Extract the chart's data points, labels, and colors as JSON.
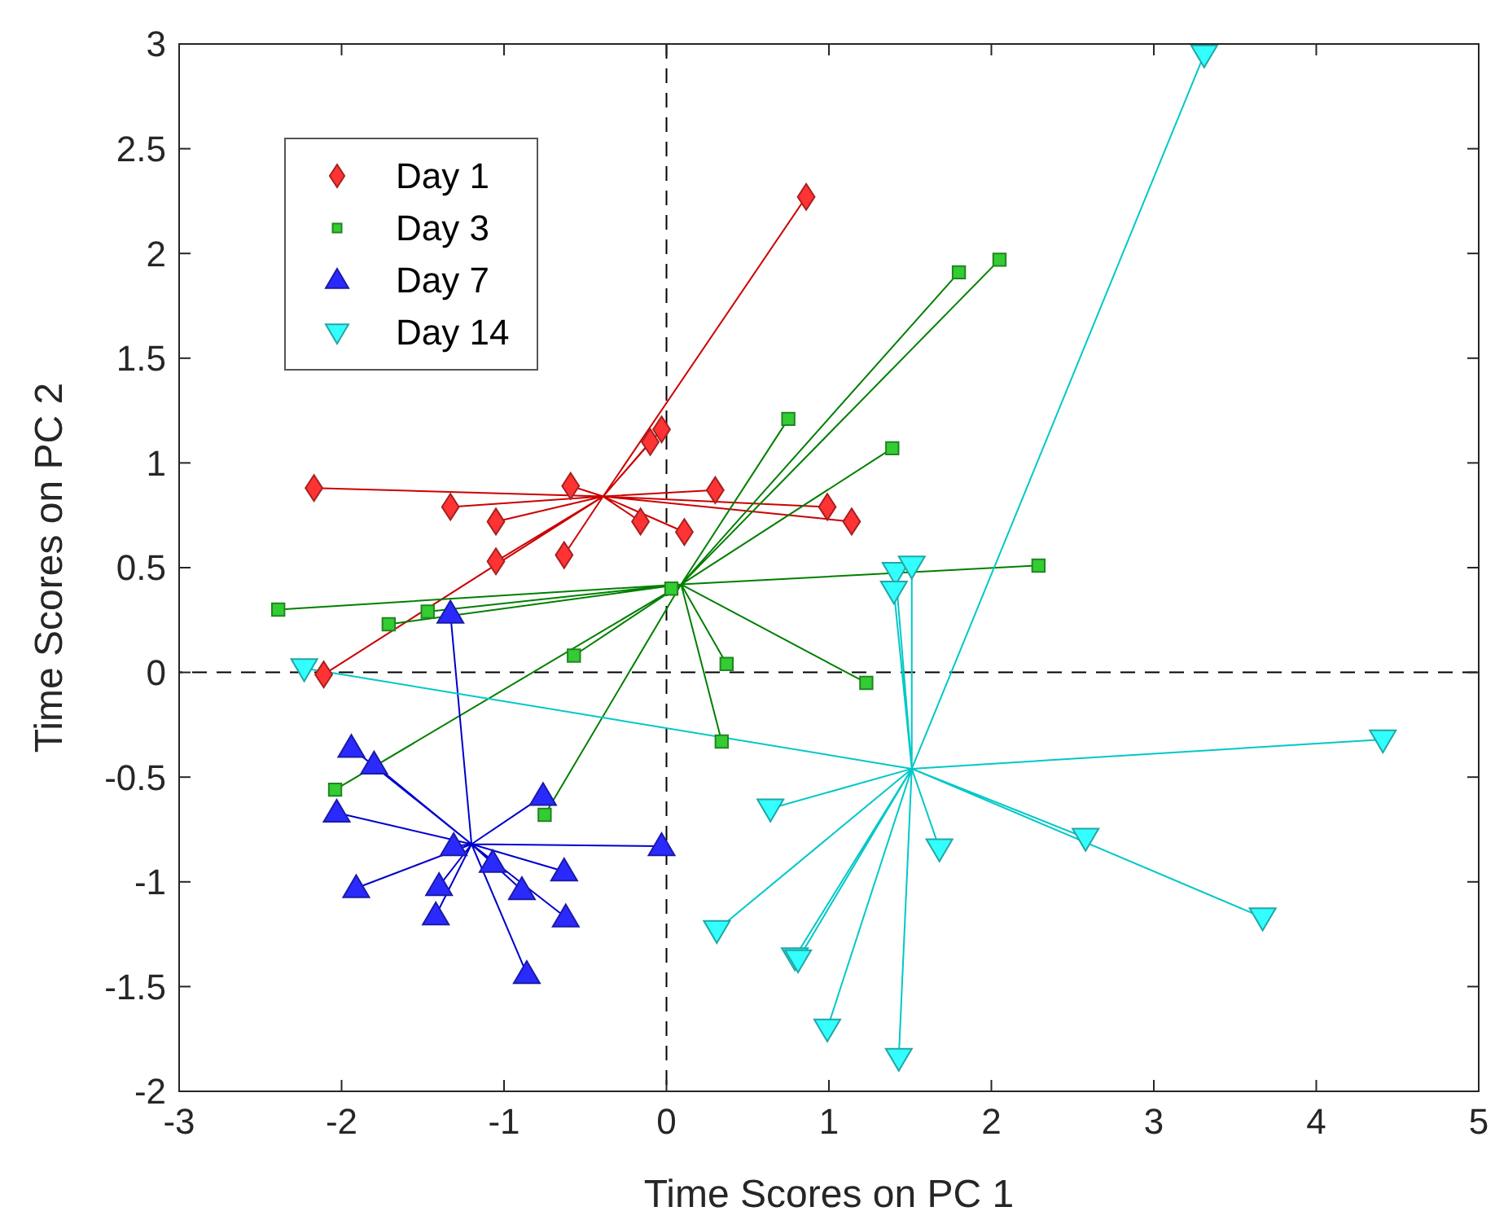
{
  "chart_data": {
    "type": "scatter",
    "xlabel": "Time Scores on PC 1",
    "ylabel": "Time Scores on PC 2",
    "xlim": [
      -3,
      5
    ],
    "ylim": [
      -2,
      3
    ],
    "xticks": [
      -3,
      -2,
      -1,
      0,
      1,
      2,
      3,
      4,
      5
    ],
    "yticks": [
      -2,
      -1.5,
      -1,
      -0.5,
      0,
      0.5,
      1,
      1.5,
      2,
      2.5,
      3
    ],
    "grid": false,
    "legend": "top left",
    "ref_lines": [
      {
        "axis": "x",
        "value": 0,
        "color": "#000000",
        "line_style": "dashed"
      },
      {
        "axis": "y",
        "value": 0,
        "color": "#000000",
        "line_style": "dashed"
      }
    ],
    "series": [
      {
        "type": "line",
        "color": "#cc0000",
        "marker": "none",
        "x": [
          -0.39,
          0.86,
          -0.39,
          -2.17,
          -0.39,
          -1.33,
          -0.39,
          -1.05,
          -0.39,
          -1.05,
          -0.39,
          -0.63,
          -0.39,
          -0.59,
          -0.39,
          -0.1,
          -0.39,
          -0.03,
          -0.39,
          -0.16,
          -0.39,
          0.11,
          -0.39,
          0.3,
          -0.39,
          0.99,
          -0.39,
          1.14,
          -0.39,
          -2.11
        ],
        "values": [
          0.84,
          2.27,
          0.84,
          0.88,
          0.84,
          0.79,
          0.84,
          0.72,
          0.84,
          0.53,
          0.84,
          0.56,
          0.84,
          0.89,
          0.84,
          1.1,
          0.84,
          1.16,
          0.84,
          0.72,
          0.84,
          0.67,
          0.84,
          0.87,
          0.84,
          0.79,
          0.84,
          0.72,
          0.84,
          -0.01
        ]
      },
      {
        "type": "line",
        "color": "#007f00",
        "marker": "none",
        "x": [
          0.09,
          2.05,
          0.09,
          1.8,
          0.09,
          0.75,
          0.09,
          1.39,
          0.09,
          2.29,
          0.09,
          0.03,
          0.09,
          0.37,
          0.09,
          1.23,
          0.09,
          0.34,
          0.09,
          -2.39,
          0.09,
          -1.71,
          0.09,
          -1.47,
          0.09,
          -0.57,
          0.09,
          -2.04,
          0.09,
          -0.75
        ],
        "values": [
          0.42,
          1.97,
          0.42,
          1.91,
          0.42,
          1.21,
          0.42,
          1.07,
          0.42,
          0.51,
          0.42,
          0.4,
          0.42,
          0.04,
          0.42,
          -0.05,
          0.42,
          -0.33,
          0.42,
          0.3,
          0.42,
          0.23,
          0.42,
          0.29,
          0.42,
          0.08,
          0.42,
          -0.56,
          0.42,
          -0.68
        ]
      },
      {
        "type": "line",
        "color": "#0000cc",
        "marker": "none",
        "x": [
          -1.2,
          -1.33,
          -1.2,
          -1.94,
          -1.2,
          -1.8,
          -1.2,
          -2.03,
          -1.2,
          -0.76,
          -1.2,
          -0.03,
          -1.2,
          -1.31,
          -1.2,
          -1.07,
          -1.2,
          -0.63,
          -1.2,
          -1.91,
          -1.2,
          -1.4,
          -1.2,
          -0.89,
          -1.2,
          -1.42,
          -1.2,
          -0.62,
          -1.2,
          -0.86
        ],
        "values": [
          -0.82,
          0.28,
          -0.82,
          -0.36,
          -0.82,
          -0.44,
          -0.82,
          -0.67,
          -0.82,
          -0.59,
          -0.82,
          -0.83,
          -0.82,
          -0.83,
          -0.82,
          -0.91,
          -0.82,
          -0.95,
          -0.82,
          -1.03,
          -0.82,
          -1.02,
          -0.82,
          -1.04,
          -0.82,
          -1.16,
          -0.82,
          -1.17,
          -0.82,
          -1.44
        ]
      },
      {
        "type": "line",
        "color": "#00c8c8",
        "marker": "none",
        "x": [
          1.51,
          -2.23,
          1.51,
          1.41,
          1.51,
          1.51,
          1.51,
          1.4,
          1.51,
          4.41,
          1.51,
          0.64,
          1.51,
          1.68,
          1.51,
          2.58,
          1.51,
          3.67,
          1.51,
          0.31,
          1.51,
          0.79,
          1.51,
          0.81,
          1.51,
          0.99,
          1.51,
          1.43,
          1.51,
          3.31
        ],
        "values": [
          -0.46,
          0.02,
          -0.46,
          0.48,
          -0.46,
          0.51,
          -0.46,
          0.39,
          -0.46,
          -0.32,
          -0.46,
          -0.65,
          -0.46,
          -0.84,
          -0.46,
          -0.79,
          -0.46,
          -1.17,
          -0.46,
          -1.23,
          -0.46,
          -1.36,
          -0.46,
          -1.37,
          -0.46,
          -1.7,
          -0.46,
          -1.84,
          -0.46,
          2.95
        ]
      },
      {
        "name": "Day 1",
        "color": "#ff3333",
        "marker": "diamond",
        "x": [
          0.86,
          -2.17,
          -1.33,
          -1.05,
          -1.05,
          -0.63,
          -0.59,
          -0.1,
          -0.03,
          -0.16,
          0.11,
          0.3,
          0.99,
          1.14,
          -2.11
        ],
        "values": [
          2.27,
          0.88,
          0.79,
          0.72,
          0.53,
          0.56,
          0.89,
          1.1,
          1.16,
          0.72,
          0.67,
          0.87,
          0.79,
          0.72,
          -0.01
        ]
      },
      {
        "name": "Day 3",
        "color": "#33cc33",
        "marker": "square",
        "x": [
          2.05,
          1.8,
          0.75,
          1.39,
          2.29,
          0.03,
          0.37,
          1.23,
          0.34,
          -2.39,
          -1.71,
          -1.47,
          -0.57,
          -2.04,
          -0.75
        ],
        "values": [
          1.97,
          1.91,
          1.21,
          1.07,
          0.51,
          0.4,
          0.04,
          -0.05,
          -0.33,
          0.3,
          0.23,
          0.29,
          0.08,
          -0.56,
          -0.68
        ]
      },
      {
        "name": "Day 7",
        "color": "#2a2aff",
        "marker": "triangle",
        "x": [
          -1.33,
          -1.94,
          -1.8,
          -2.03,
          -0.76,
          -0.03,
          -1.31,
          -1.07,
          -0.63,
          -1.91,
          -1.4,
          -0.89,
          -1.42,
          -0.62,
          -0.86
        ],
        "values": [
          0.28,
          -0.36,
          -0.44,
          -0.67,
          -0.59,
          -0.83,
          -0.83,
          -0.91,
          -0.95,
          -1.03,
          -1.02,
          -1.04,
          -1.16,
          -1.17,
          -1.44
        ]
      },
      {
        "name": "Day 14",
        "color": "#33ffff",
        "marker": "triangle_down",
        "x": [
          -2.23,
          1.41,
          1.51,
          1.4,
          4.41,
          0.64,
          1.68,
          2.58,
          3.67,
          0.31,
          0.79,
          0.81,
          0.99,
          1.43,
          3.31
        ],
        "values": [
          0.02,
          0.48,
          0.51,
          0.39,
          -0.32,
          -0.65,
          -0.84,
          -0.79,
          -1.17,
          -1.23,
          -1.36,
          -1.37,
          -1.7,
          -1.84,
          2.95
        ]
      }
    ]
  }
}
